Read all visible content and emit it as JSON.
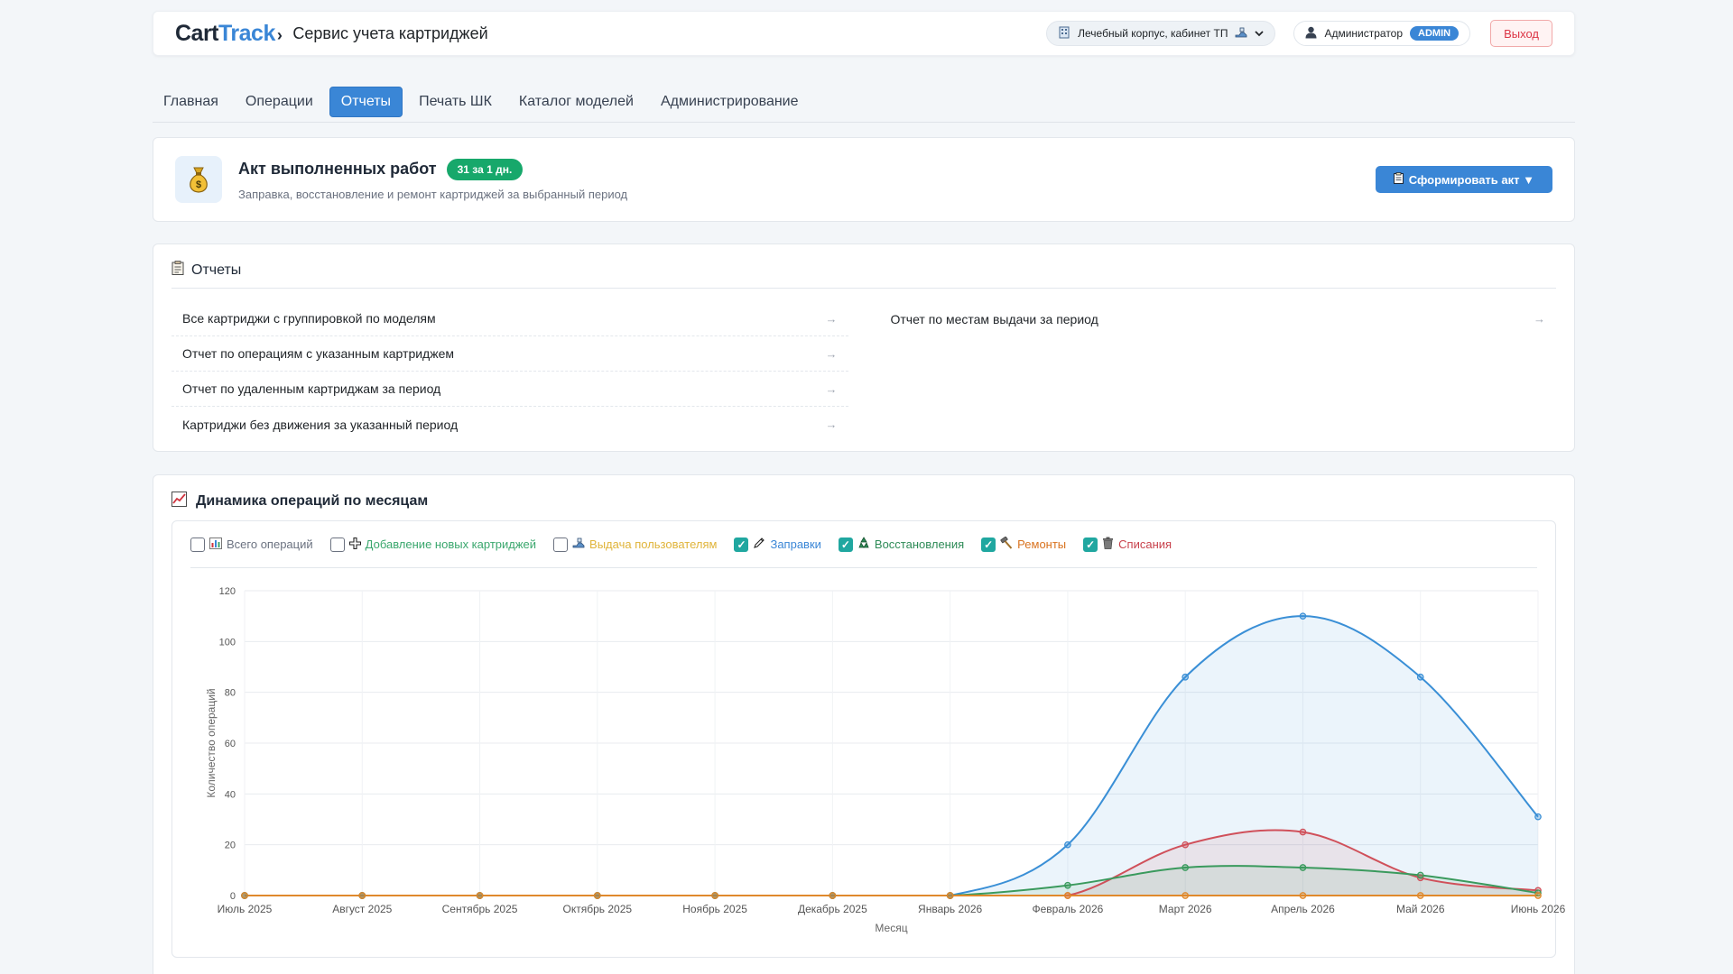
{
  "header": {
    "logo_cart": "Cart",
    "logo_track": "Track",
    "logo_chevron": "›",
    "app_title": "Сервис учета картриджей",
    "location": "Лечебный корпус, кабинет ТП",
    "user_name": "Администратор",
    "user_role": "ADMIN",
    "logout": "Выход"
  },
  "nav": [
    "Главная",
    "Операции",
    "Отчеты",
    "Печать ШК",
    "Каталог моделей",
    "Администрирование"
  ],
  "nav_active": "Отчеты",
  "act": {
    "title": "Акт выполненных работ",
    "badge": "31 за 1 дн.",
    "subtitle": "Заправка, восстановление и ремонт картриджей за выбранный период",
    "button": "Сформировать акт ▼"
  },
  "reports": {
    "title": "Отчеты",
    "left": [
      "Все картриджи с группировкой по моделям",
      "Отчет по операциям с указанным картриджем",
      "Отчет по удаленным картриджам за период",
      "Картриджи без движения за указанный период"
    ],
    "right": [
      "Отчет по местам выдачи за период"
    ],
    "arrow": "→"
  },
  "dynamics": {
    "title": "Динамика операций по месяцам",
    "legend": [
      {
        "label": "Всего операций",
        "checked": false,
        "color": "#6b7280",
        "icon": "bar-chart-icon"
      },
      {
        "label": "Добавление новых картриджей",
        "checked": false,
        "color": "#3aa76d",
        "icon": "plus-icon"
      },
      {
        "label": "Выдача пользователям",
        "checked": false,
        "color": "#e0b43a",
        "icon": "hand-icon"
      },
      {
        "label": "Заправки",
        "checked": true,
        "color": "#3a86d6",
        "icon": "pen-icon"
      },
      {
        "label": "Восстановления",
        "checked": true,
        "color": "#2e8b57",
        "icon": "recycle-icon"
      },
      {
        "label": "Ремонты",
        "checked": true,
        "color": "#d9731f",
        "icon": "hammer-icon"
      },
      {
        "label": "Списания",
        "checked": true,
        "color": "#c8414b",
        "icon": "trash-icon"
      }
    ]
  },
  "chart_data": {
    "type": "line",
    "xlabel": "Месяц",
    "ylabel": "Количество операций",
    "ylim": [
      0,
      120
    ],
    "yticks": [
      0,
      20,
      40,
      60,
      80,
      100,
      120
    ],
    "categories": [
      "Июль 2025",
      "Август 2025",
      "Сентябрь 2025",
      "Октябрь 2025",
      "Ноябрь 2025",
      "Декабрь 2025",
      "Январь 2026",
      "Февраль 2026",
      "Март 2026",
      "Апрель 2026",
      "Май 2026",
      "Июнь 2026"
    ],
    "series": [
      {
        "name": "Заправки",
        "color": "#3a8fd6",
        "fill": true,
        "values": [
          0,
          0,
          0,
          0,
          0,
          0,
          0,
          20,
          86,
          110,
          86,
          31
        ]
      },
      {
        "name": "Списания",
        "color": "#d0505a",
        "fill": true,
        "values": [
          0,
          0,
          0,
          0,
          0,
          0,
          0,
          0,
          20,
          25,
          7,
          2
        ]
      },
      {
        "name": "Восстановления",
        "color": "#3a9a5d",
        "fill": true,
        "values": [
          0,
          0,
          0,
          0,
          0,
          0,
          0,
          4,
          11,
          11,
          8,
          1
        ]
      },
      {
        "name": "Ремонты",
        "color": "#e0892c",
        "fill": false,
        "values": [
          0,
          0,
          0,
          0,
          0,
          0,
          0,
          0,
          0,
          0,
          0,
          0
        ]
      }
    ],
    "grid": true,
    "legend": "top"
  }
}
